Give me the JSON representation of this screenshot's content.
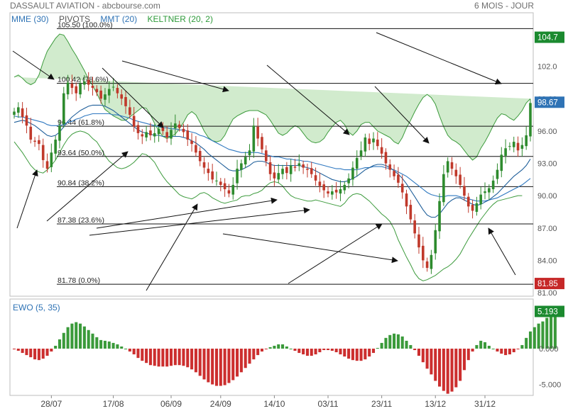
{
  "header": {
    "title": "DASSAULT AVIATION - abcbourse.com",
    "period": "6 MOIS - JOUR"
  },
  "legend": [
    {
      "label": "MME (30)",
      "color": "#2f73b5"
    },
    {
      "label": "PIVOTS",
      "color": "#555555"
    },
    {
      "label": "MMT (20)",
      "color": "#2f73b5"
    },
    {
      "label": "KELTNER (20, 2)",
      "color": "#2e9a3a"
    }
  ],
  "colors": {
    "up": "#2e8b2e",
    "down": "#c0392b",
    "band_fill": "#c9e8c4",
    "band_line": "#3d9b3d",
    "ma_short": "#1f5f9a",
    "ma_long": "#2f78c0",
    "last_price_badge": "#2f73b5",
    "top_badge": "#1b8a2f",
    "low_badge": "#c62828",
    "ewo_up": "#3a9a3a",
    "ewo_down": "#cc2e2e"
  },
  "chart_data": [
    {
      "type": "candlestick",
      "title": "DASSAULT AVIATION",
      "x_tick_labels": [
        "28/07",
        "17/08",
        "06/09",
        "24/09",
        "14/10",
        "03/11",
        "23/11",
        "13/12",
        "31/12"
      ],
      "y_ticks": [
        "105.0",
        "102.0",
        "99.00",
        "96.00",
        "93.00",
        "90.00",
        "87.00",
        "84.00",
        "81.00"
      ],
      "ylim": [
        81.0,
        105.0
      ],
      "badges": {
        "top": "104.7",
        "last": "98.67",
        "low": "81.85"
      },
      "pivots": [
        {
          "label": "105.50  (100.0%)",
          "value": 105.5
        },
        {
          "label": "100.42  (78.6%)",
          "value": 100.42
        },
        {
          "label": "96.44  (61.8%)",
          "value": 96.44
        },
        {
          "label": "93.64  (50.0%)",
          "value": 93.64
        },
        {
          "label": "90.84  (38.2%)",
          "value": 90.84
        },
        {
          "label": "87.38  (23.6%)",
          "value": 87.38
        },
        {
          "label": "81.78  (0.0%)",
          "value": 81.78
        }
      ],
      "close": [
        97.8,
        98.2,
        97.3,
        96.5,
        95.2,
        95.0,
        94.8,
        93.3,
        92.5,
        94.0,
        95.2,
        96.5,
        99.5,
        100.5,
        100.0,
        99.5,
        100.4,
        100.6,
        100.3,
        100.0,
        99.6,
        99.0,
        99.4,
        99.9,
        100.1,
        99.5,
        99.0,
        98.3,
        97.5,
        96.4,
        95.8,
        95.5,
        95.9,
        95.6,
        95.8,
        96.2,
        96.0,
        95.4,
        96.1,
        96.7,
        96.3,
        95.9,
        95.2,
        94.8,
        94.0,
        93.2,
        92.6,
        92.1,
        91.5,
        91.4,
        91.0,
        90.6,
        90.2,
        91.0,
        92.5,
        93.0,
        93.6,
        94.2,
        96.5,
        95.3,
        94.3,
        93.2,
        92.0,
        91.6,
        92.1,
        92.5,
        92.1,
        92.8,
        92.6,
        93.0,
        92.6,
        92.4,
        92.0,
        91.4,
        90.9,
        90.5,
        90.2,
        90.4,
        90.3,
        90.6,
        91.0,
        91.6,
        92.6,
        93.5,
        94.2,
        95.4,
        94.8,
        95.3,
        94.6,
        93.9,
        93.0,
        92.4,
        91.8,
        91.2,
        90.3,
        89.0,
        87.8,
        86.5,
        85.2,
        84.0,
        83.3,
        84.5,
        86.8,
        89.5,
        92.0,
        93.2,
        92.5,
        91.8,
        91.0,
        90.0,
        89.0,
        88.6,
        89.3,
        90.1,
        90.4,
        90.7,
        91.4,
        92.4,
        93.8,
        94.4,
        94.6,
        95.0,
        94.2,
        94.7,
        95.6,
        98.6
      ],
      "keltner_upper": [
        101.0,
        101.2,
        100.9,
        100.5,
        100.3,
        100.5,
        101.2,
        102.4,
        103.4,
        104.0,
        104.6,
        105.0,
        104.9,
        104.3,
        103.6,
        103.0,
        102.3,
        101.6,
        100.8,
        100.2,
        99.5,
        98.7,
        98.0,
        97.7,
        97.4,
        97.2,
        97.0,
        97.0,
        97.3,
        97.6,
        97.9,
        98.2,
        98.1,
        97.5,
        96.7,
        96.0,
        95.5,
        95.3,
        95.5,
        95.7,
        96.2,
        96.8,
        97.5,
        97.8,
        97.5,
        96.8,
        96.0,
        95.4,
        95.1,
        95.0,
        95.1,
        95.6,
        96.4,
        97.1,
        97.4,
        97.6,
        97.8,
        97.9,
        97.9,
        97.9,
        97.7,
        97.5,
        97.0,
        96.4,
        95.8,
        95.6,
        95.8,
        96.2,
        96.5,
        96.3,
        95.8,
        95.3,
        95.0,
        94.9,
        95.0,
        95.3,
        95.9,
        96.4,
        96.8,
        97.0,
        96.6,
        95.9,
        95.6,
        96.0,
        96.6,
        96.8,
        96.8,
        96.4,
        96.0,
        95.8,
        95.6,
        95.4,
        95.0,
        94.8,
        95.4,
        96.3,
        97.0,
        97.8,
        98.5,
        99.1,
        99.4,
        99.1,
        98.5,
        97.4,
        96.4,
        95.6,
        95.2,
        95.0,
        94.7,
        94.2,
        93.7,
        93.3,
        93.6,
        94.4,
        95.0,
        95.7,
        96.5,
        97.2,
        97.6,
        97.5,
        97.2,
        97.0,
        97.4,
        97.9,
        98.6,
        99.0
      ],
      "keltner_lower": [
        95.0,
        94.5,
        94.0,
        93.4,
        92.8,
        92.4,
        92.2,
        92.1,
        92.4,
        92.8,
        93.3,
        94.0,
        94.7,
        95.3,
        95.7,
        95.9,
        96.0,
        95.9,
        95.7,
        95.3,
        95.0,
        94.4,
        93.7,
        93.2,
        92.9,
        92.6,
        92.5,
        92.6,
        92.8,
        93.1,
        93.5,
        93.9,
        93.8,
        93.5,
        93.1,
        92.4,
        91.8,
        91.3,
        90.9,
        90.5,
        90.1,
        89.9,
        89.8,
        89.7,
        89.9,
        90.2,
        90.3,
        90.1,
        89.8,
        89.6,
        89.4,
        89.3,
        89.4,
        89.5,
        89.6,
        89.9,
        90.0,
        90.0,
        90.2,
        90.3,
        90.5,
        90.9,
        91.2,
        91.3,
        91.2,
        90.9,
        90.4,
        90.0,
        89.8,
        89.7,
        89.6,
        89.5,
        89.5,
        89.6,
        89.5,
        89.4,
        89.3,
        89.2,
        89.1,
        89.0,
        89.3,
        89.8,
        90.1,
        90.2,
        90.1,
        89.8,
        89.5,
        89.1,
        88.7,
        88.3,
        88.0,
        87.6,
        86.9,
        85.9,
        85.1,
        84.3,
        83.6,
        82.8,
        82.3,
        82.1,
        82.2,
        82.4,
        82.6,
        82.9,
        83.2,
        83.4,
        83.7,
        84.1,
        84.6,
        85.3,
        86.0,
        86.6,
        87.2,
        87.8,
        88.3,
        88.8,
        89.2,
        89.5,
        89.6,
        89.7,
        89.8,
        89.9,
        90.0,
        90.0
      ],
      "mma_short": [
        96.8,
        96.9,
        97.0,
        96.9,
        96.7,
        96.5,
        96.2,
        95.9,
        95.6,
        95.5,
        95.6,
        95.9,
        96.4,
        96.9,
        97.3,
        97.6,
        97.9,
        98.1,
        98.3,
        98.4,
        98.4,
        98.4,
        98.3,
        98.1,
        97.9,
        97.6,
        97.3,
        97.0,
        96.7,
        96.4,
        96.1,
        95.9,
        95.8,
        95.7,
        95.6,
        95.6,
        95.5,
        95.5,
        95.5,
        95.5,
        95.5,
        95.4,
        95.3,
        95.1,
        94.9,
        94.6,
        94.3,
        93.9,
        93.6,
        93.3,
        93.0,
        92.7,
        92.4,
        92.3,
        92.3,
        92.4,
        92.6,
        92.8,
        93.1,
        93.2,
        93.2,
        93.1,
        92.9,
        92.8,
        92.8,
        92.8,
        92.8,
        92.8,
        92.8,
        92.8,
        92.7,
        92.6,
        92.5,
        92.3,
        92.1,
        91.9,
        91.7,
        91.5,
        91.4,
        91.3,
        91.3,
        91.4,
        91.6,
        91.8,
        92.1,
        92.4,
        92.6,
        92.8,
        92.9,
        92.9,
        92.8,
        92.6,
        92.3,
        92.0,
        91.6,
        91.1,
        90.5,
        89.9,
        89.3,
        88.7,
        88.2,
        88.0,
        88.0,
        88.3,
        88.8,
        89.3,
        89.6,
        89.8,
        89.8,
        89.6,
        89.4,
        89.2,
        89.1,
        89.2,
        89.4,
        89.6,
        89.9,
        90.2,
        90.6,
        91.0,
        91.4,
        91.8,
        92.1,
        92.4,
        92.8,
        93.4
      ],
      "mma_long": [
        97.4,
        97.3,
        97.3,
        97.2,
        97.1,
        97.0,
        96.9,
        96.8,
        96.6,
        96.5,
        96.5,
        96.5,
        96.6,
        96.8,
        96.9,
        97.1,
        97.2,
        97.4,
        97.5,
        97.6,
        97.6,
        97.6,
        97.6,
        97.6,
        97.5,
        97.5,
        97.4,
        97.3,
        97.2,
        97.0,
        96.9,
        96.8,
        96.7,
        96.6,
        96.5,
        96.4,
        96.3,
        96.3,
        96.2,
        96.2,
        96.1,
        96.1,
        96.0,
        95.9,
        95.8,
        95.6,
        95.5,
        95.3,
        95.1,
        94.9,
        94.7,
        94.5,
        94.3,
        94.2,
        94.1,
        94.0,
        94.0,
        94.0,
        94.0,
        94.0,
        93.9,
        93.8,
        93.7,
        93.6,
        93.6,
        93.5,
        93.4,
        93.4,
        93.3,
        93.3,
        93.2,
        93.2,
        93.1,
        93.0,
        92.9,
        92.8,
        92.7,
        92.6,
        92.5,
        92.5,
        92.4,
        92.4,
        92.4,
        92.4,
        92.5,
        92.6,
        92.6,
        92.7,
        92.7,
        92.7,
        92.6,
        92.5,
        92.4,
        92.2,
        92.0,
        91.8,
        91.5,
        91.2,
        90.9,
        90.6,
        90.3,
        90.1,
        90.0,
        89.9,
        89.9,
        90.0,
        90.0,
        90.0,
        89.9,
        89.8,
        89.7,
        89.6,
        89.5,
        89.5,
        89.5,
        89.6,
        89.7,
        89.8,
        90.0,
        90.2,
        90.4,
        90.6,
        90.8,
        91.0,
        91.3,
        91.6
      ]
    },
    {
      "type": "bar",
      "title": "EWO (5, 35)",
      "y_ticks": [
        "5.000",
        "0.000",
        "-5.000"
      ],
      "ylim": [
        -7.0,
        6.5
      ],
      "badges": {
        "last": "5.193"
      },
      "values": [
        -0.1,
        -0.3,
        -0.6,
        -0.9,
        -1.2,
        -1.5,
        -1.6,
        -1.4,
        -1.0,
        -0.4,
        0.4,
        1.3,
        2.2,
        3.0,
        3.5,
        3.7,
        3.5,
        3.1,
        2.6,
        2.1,
        1.6,
        1.2,
        1.1,
        1.0,
        0.8,
        0.6,
        0.3,
        0.0,
        -0.4,
        -0.8,
        -1.3,
        -1.7,
        -2.0,
        -2.3,
        -2.4,
        -2.5,
        -2.5,
        -2.5,
        -2.4,
        -2.3,
        -2.3,
        -2.4,
        -2.6,
        -2.9,
        -3.3,
        -3.8,
        -4.3,
        -4.7,
        -5.0,
        -5.2,
        -5.2,
        -5.1,
        -4.8,
        -4.4,
        -3.9,
        -3.3,
        -2.7,
        -2.1,
        -1.5,
        -0.9,
        -0.4,
        -0.1,
        0.2,
        0.4,
        0.6,
        0.6,
        0.3,
        0.0,
        -0.3,
        -0.6,
        -0.8,
        -1.0,
        -1.0,
        -0.8,
        -0.5,
        -0.2,
        -0.2,
        -0.3,
        -0.5,
        -0.8,
        -1.1,
        -1.4,
        -1.6,
        -1.7,
        -1.7,
        -1.5,
        -1.1,
        -0.6,
        0.1,
        0.8,
        1.5,
        1.9,
        2.1,
        2.0,
        1.7,
        1.1,
        0.5,
        -0.2,
        -1.0,
        -1.9,
        -2.8,
        -3.6,
        -4.5,
        -5.3,
        -5.9,
        -6.3,
        -6.0,
        -5.4,
        -4.5,
        -3.0,
        -1.6,
        -0.4,
        0.5,
        1.1,
        0.9,
        0.4,
        0.0,
        -0.4,
        -0.7,
        -0.9,
        -0.8,
        -0.5,
        -0.1,
        0.5,
        1.5,
        2.4,
        3.0,
        3.5,
        3.8,
        4.3,
        4.7,
        5.2
      ]
    }
  ]
}
